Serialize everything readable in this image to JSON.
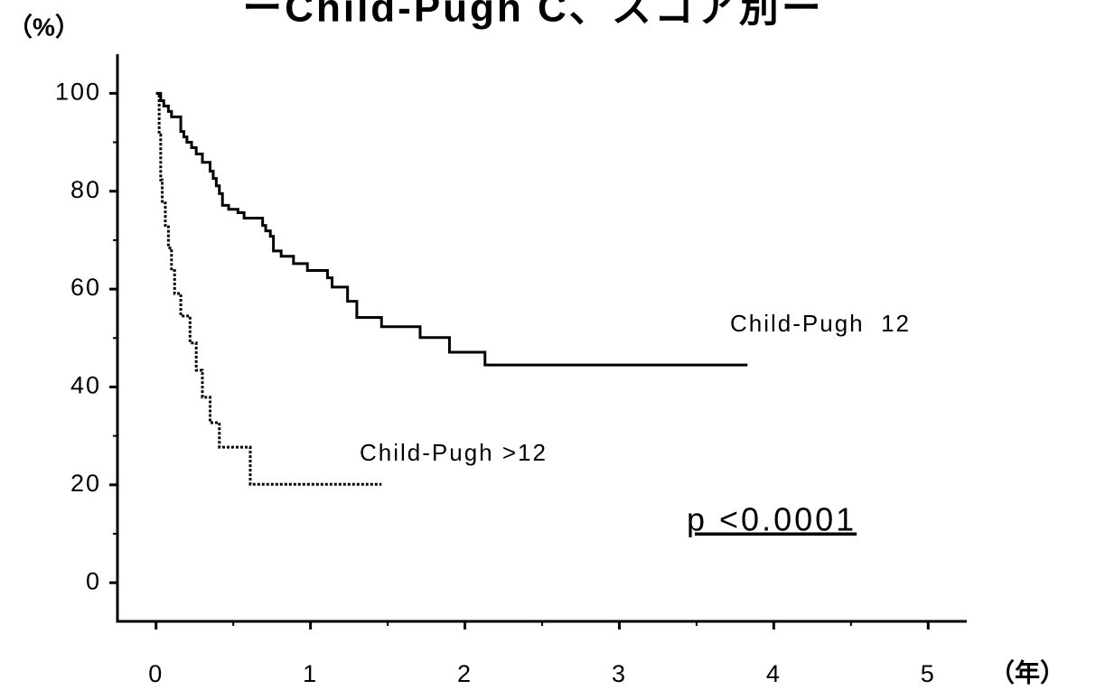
{
  "chart_data": {
    "type": "step",
    "title": "ーChild-Pugh C、スコア別ー",
    "y_label": "（%）",
    "x_label": "（年）",
    "annotation": "p <0.0001",
    "xlim": [
      -0.25,
      5.25
    ],
    "ylim": [
      -7.9,
      108
    ],
    "xticks": [
      0,
      1,
      2,
      3,
      4,
      5
    ],
    "xminorticks": [
      0.5,
      1.5,
      2.5,
      3.5,
      4.5
    ],
    "yticks": [
      0,
      20,
      40,
      60,
      80,
      100
    ],
    "yminorticks": [
      10,
      30,
      50,
      70,
      90
    ],
    "series": [
      {
        "name": "Child-Pugh  12",
        "color": "#000000",
        "dash": "solid",
        "x": [
          0,
          0.03,
          0.05,
          0.08,
          0.1,
          0.16,
          0.18,
          0.2,
          0.23,
          0.26,
          0.3,
          0.35,
          0.37,
          0.39,
          0.41,
          0.43,
          0.47,
          0.53,
          0.57,
          0.69,
          0.71,
          0.74,
          0.76,
          0.81,
          0.89,
          0.98,
          1.11,
          1.14,
          1.24,
          1.3,
          1.46,
          1.71,
          1.9,
          2.13,
          3.83
        ],
        "values": [
          100,
          98.5,
          97.4,
          96.3,
          95.2,
          92.2,
          91.1,
          90.0,
          88.9,
          87.6,
          85.9,
          84.1,
          82.6,
          81.1,
          79.5,
          77.1,
          76.3,
          75.6,
          74.5,
          73.0,
          71.9,
          70.8,
          67.8,
          66.7,
          65.2,
          63.8,
          62.3,
          60.4,
          57.5,
          54.2,
          52.3,
          50.1,
          47.1,
          44.5,
          44.5
        ]
      },
      {
        "name": "Child-Pugh >12",
        "color": "#000000",
        "dash": "dotted",
        "x": [
          0,
          0.02,
          0.03,
          0.04,
          0.06,
          0.08,
          0.1,
          0.12,
          0.16,
          0.22,
          0.26,
          0.3,
          0.35,
          0.41,
          0.61,
          1.46
        ],
        "values": [
          100,
          91.5,
          82.3,
          77.6,
          73.0,
          68.4,
          63.8,
          59.1,
          54.5,
          49.0,
          43.4,
          37.9,
          32.7,
          27.7,
          20.1,
          20.1
        ]
      }
    ]
  }
}
